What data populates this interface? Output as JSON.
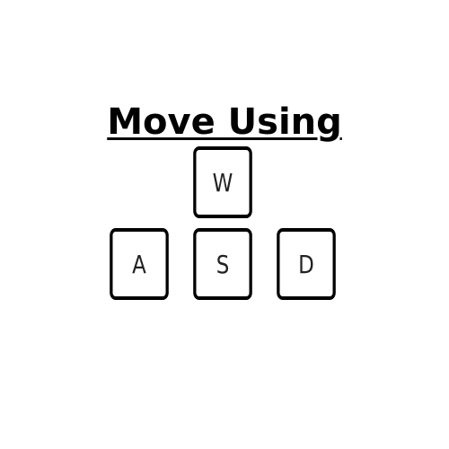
{
  "title": "Move Using",
  "keys": {
    "w": "W",
    "a": "A",
    "s": "S",
    "d": "D"
  }
}
